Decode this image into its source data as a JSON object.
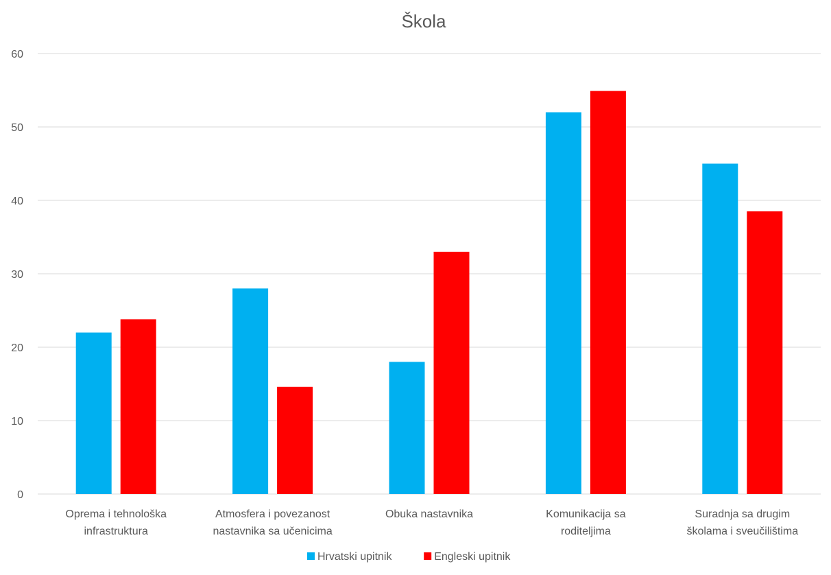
{
  "chart_data": {
    "type": "bar",
    "title": "Škola",
    "categories": [
      [
        "Oprema i tehnološka",
        "infrastruktura"
      ],
      [
        "Atmosfera i povezanost",
        "nastavnika sa učenicima"
      ],
      [
        "Obuka nastavnika"
      ],
      [
        "Komunikacija sa",
        "roditeljima"
      ],
      [
        "Suradnja sa drugim",
        "školama i sveučilištima"
      ]
    ],
    "series": [
      {
        "name": "Hrvatski upitnik",
        "color": "#00b0f0",
        "values": [
          22,
          28,
          18,
          52,
          45
        ]
      },
      {
        "name": "Engleski upitnik",
        "color": "#ff0000",
        "values": [
          23.8,
          14.6,
          33,
          54.9,
          38.5
        ]
      }
    ],
    "ylim": [
      0,
      60
    ],
    "yticks": [
      0,
      10,
      20,
      30,
      40,
      50,
      60
    ],
    "grid": true,
    "legend_position": "bottom"
  }
}
